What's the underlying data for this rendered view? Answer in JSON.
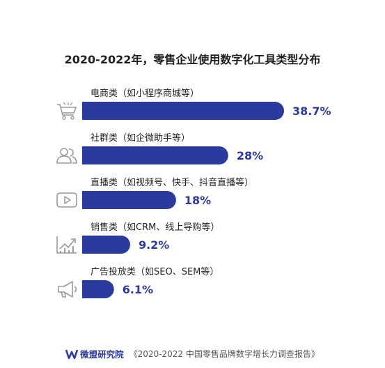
{
  "chart_data": {
    "type": "bar",
    "orientation": "horizontal",
    "title": "2020-2022年，零售企业使用数字化工具类型分布",
    "categories": [
      "电商类（如小程序商城等）",
      "社群类（如企微助手等）",
      "直播类（如视频号、快手、抖音直播等）",
      "销售类（如CRM、线上导购等）",
      "广告投放类（如SEO、SEM等）"
    ],
    "values": [
      38.7,
      28,
      18,
      9.2,
      6.1
    ],
    "value_labels": [
      "38.7%",
      "28%",
      "18%",
      "9.2%",
      "6.1%"
    ],
    "icons": [
      "shopping-cart-icon",
      "users-icon",
      "video-play-icon",
      "growth-chart-icon",
      "megaphone-icon"
    ],
    "bar_color": "#2b3a9e",
    "value_color": "#2b3a9e",
    "xlim": [
      0,
      38.7
    ],
    "grid": false,
    "legend": "none"
  },
  "footer": {
    "brand": "微盟研究院",
    "report": "《2020-2022 中国零售品牌数字增长力调查报告》"
  }
}
